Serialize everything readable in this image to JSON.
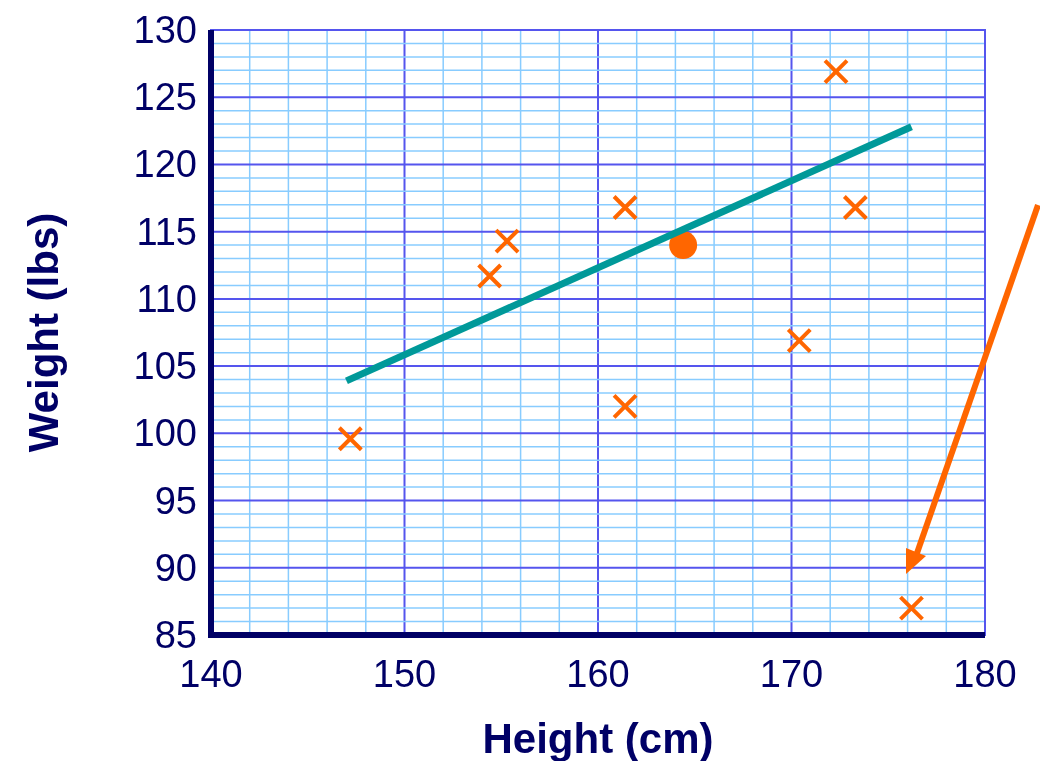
{
  "chart_data": {
    "type": "scatter",
    "xlabel": "Height (cm)",
    "ylabel": "Weight (lbs)",
    "xlim": [
      140,
      180
    ],
    "ylim": [
      85,
      130
    ],
    "xticks": [
      140,
      {
        "value": 142,
        "label": null
      },
      {
        "value": 144,
        "label": null
      },
      {
        "value": 146,
        "label": null
      },
      {
        "value": 148,
        "label": null
      },
      150,
      {
        "value": 152,
        "label": null
      },
      {
        "value": 154,
        "label": null
      },
      {
        "value": 156,
        "label": null
      },
      {
        "value": 158,
        "label": null
      },
      160,
      {
        "value": 162,
        "label": null
      },
      {
        "value": 164,
        "label": null
      },
      {
        "value": 166,
        "label": null
      },
      {
        "value": 168,
        "label": null
      },
      170,
      {
        "value": 172,
        "label": null
      },
      {
        "value": 174,
        "label": null
      },
      {
        "value": 176,
        "label": null
      },
      {
        "value": 178,
        "label": null
      },
      180
    ],
    "yticks": [
      85,
      {
        "value": 86,
        "label": null
      },
      {
        "value": 87,
        "label": null
      },
      {
        "value": 88,
        "label": null
      },
      {
        "value": 89,
        "label": null
      },
      90,
      {
        "value": 91,
        "label": null
      },
      {
        "value": 92,
        "label": null
      },
      {
        "value": 93,
        "label": null
      },
      {
        "value": 94,
        "label": null
      },
      95,
      {
        "value": 96,
        "label": null
      },
      {
        "value": 97,
        "label": null
      },
      {
        "value": 98,
        "label": null
      },
      {
        "value": 99,
        "label": null
      },
      100,
      {
        "value": 101,
        "label": null
      },
      {
        "value": 102,
        "label": null
      },
      {
        "value": 103,
        "label": null
      },
      {
        "value": 104,
        "label": null
      },
      105,
      {
        "value": 106,
        "label": null
      },
      {
        "value": 107,
        "label": null
      },
      {
        "value": 108,
        "label": null
      },
      {
        "value": 109,
        "label": null
      },
      110,
      {
        "value": 111,
        "label": null
      },
      {
        "value": 112,
        "label": null
      },
      {
        "value": 113,
        "label": null
      },
      {
        "value": 114,
        "label": null
      },
      115,
      {
        "value": 116,
        "label": null
      },
      {
        "value": 117,
        "label": null
      },
      {
        "value": 118,
        "label": null
      },
      {
        "value": 119,
        "label": null
      },
      120,
      {
        "value": 121,
        "label": null
      },
      {
        "value": 122,
        "label": null
      },
      {
        "value": 123,
        "label": null
      },
      {
        "value": 124,
        "label": null
      },
      125,
      {
        "value": 126,
        "label": null
      },
      {
        "value": 127,
        "label": null
      },
      {
        "value": 128,
        "label": null
      },
      {
        "value": 129,
        "label": null
      },
      130
    ],
    "grid": true,
    "series": [
      {
        "marker": "cross",
        "color": "#ff6600",
        "x": [
          147.2,
          154.4,
          155.3,
          161.4,
          161.4,
          172.3,
          173.3,
          170.4,
          176.2
        ],
        "values": [
          99.6,
          111.7,
          114.3,
          116.8,
          102.0,
          126.9,
          116.8,
          106.9,
          87.0
        ]
      },
      {
        "marker": "circle",
        "color": "#ff6600",
        "x": [
          164.4
        ],
        "values": [
          114.0
        ]
      },
      {
        "type": "line",
        "marker": "none",
        "color": "#009999",
        "x": [
          147.0,
          176.2
        ],
        "values": [
          103.9,
          122.8
        ]
      }
    ]
  }
}
